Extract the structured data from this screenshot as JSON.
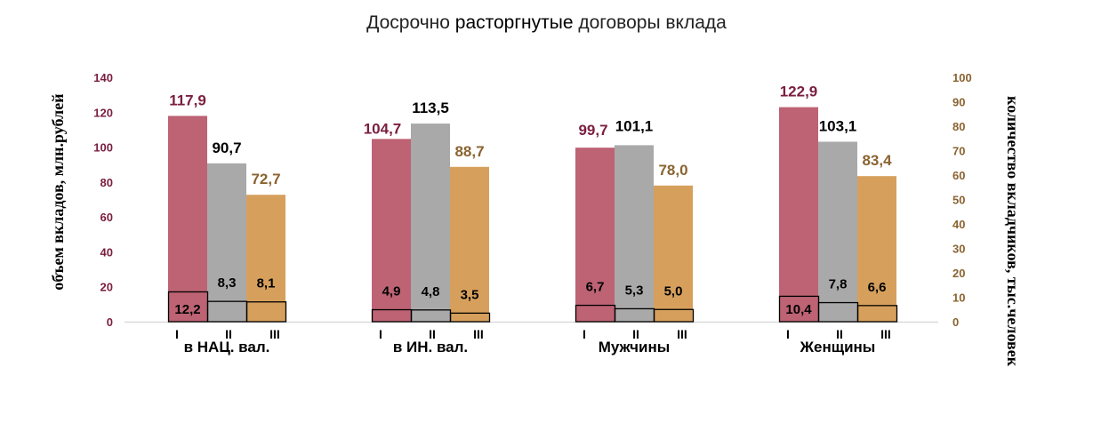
{
  "chart_data": {
    "type": "bar",
    "title_parts": {
      "before": "Досрочно ",
      "bold": "расторгнутые",
      "after": " договоры вклада"
    },
    "categories": [
      "в НАЦ. вал.",
      "в ИН. вал.",
      "Мужчины",
      "Женщины"
    ],
    "sub_labels": [
      "I",
      "II",
      "III"
    ],
    "ylabel": "объем вкладов, млн.рублей",
    "ylabel_right": "количество вкладчиков, тыс.человек",
    "ylim": [
      0,
      140
    ],
    "ylim_right": [
      0,
      100
    ],
    "yticks": [
      0,
      20,
      40,
      60,
      80,
      100,
      120,
      140
    ],
    "yticks_right": [
      0,
      10,
      20,
      30,
      40,
      50,
      60,
      70,
      80,
      90,
      100
    ],
    "grid": false,
    "colors": {
      "volume": [
        "#bd6374",
        "#a9a9a9",
        "#d6a05c"
      ],
      "volume_label": [
        "#7a1e3f",
        "#000000",
        "#8a6330"
      ],
      "left_axis": "#7a1e3f",
      "right_axis": "#8a6330"
    },
    "series_volume": [
      {
        "values": [
          117.9,
          104.7,
          99.7,
          122.9
        ],
        "labels": [
          "117,9",
          "104,7",
          "99,7",
          "122,9"
        ]
      },
      {
        "values": [
          90.7,
          113.5,
          101.1,
          103.1
        ],
        "labels": [
          "90,7",
          "113,5",
          "101,1",
          "103,1"
        ]
      },
      {
        "values": [
          72.7,
          88.7,
          78.0,
          83.4
        ],
        "labels": [
          "72,7",
          "88,7",
          "78,0",
          "83,4"
        ]
      }
    ],
    "series_count": [
      {
        "values": [
          12.2,
          4.9,
          6.7,
          10.4
        ],
        "labels": [
          "12,2",
          "4,9",
          "6,7",
          "10,4"
        ]
      },
      {
        "values": [
          8.3,
          4.8,
          5.3,
          7.8
        ],
        "labels": [
          "8,3",
          "4,8",
          "5,3",
          "7,8"
        ]
      },
      {
        "values": [
          8.1,
          3.5,
          5.0,
          6.6
        ],
        "labels": [
          "8,1",
          "3,5",
          "5,0",
          "6,6"
        ]
      }
    ]
  }
}
